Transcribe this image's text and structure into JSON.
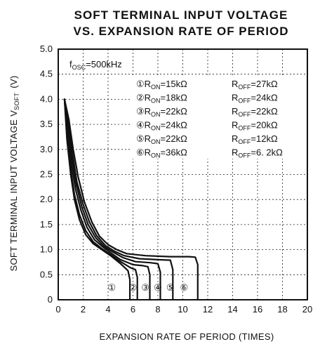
{
  "chart_data": {
    "type": "line",
    "title_lines": [
      "SOFT TERMINAL INPUT VOLTAGE",
      "VS. EXPANSION RATE OF PERIOD"
    ],
    "ylabel_main": "SOFT TERMINAL INPUT VOLTAGE V",
    "ylabel_sub": "SOFT",
    "ylabel_unit": "(V)",
    "xlabel": "EXPANSION RATE OF PERIOD (TIMES)",
    "xlim": [
      0,
      20
    ],
    "ylim": [
      0,
      5.0
    ],
    "x_ticks": [
      "0",
      "2",
      "4",
      "6",
      "8",
      "10",
      "12",
      "14",
      "16",
      "18",
      "20"
    ],
    "y_ticks": [
      "0",
      "0.5",
      "1.0",
      "1.5",
      "2.0",
      "2.5",
      "3.0",
      "3.5",
      "4.0",
      "4.5",
      "5.0"
    ],
    "grid": true,
    "condition": {
      "main": "f",
      "sub": "OSC",
      "rest": "=500kHz"
    },
    "legend": [
      {
        "num": "①",
        "ron": "=15kΩ",
        "roff": "=27kΩ"
      },
      {
        "num": "②",
        "ron": "=18kΩ",
        "roff": "=24kΩ"
      },
      {
        "num": "③",
        "ron": "=22kΩ",
        "roff": "=22kΩ"
      },
      {
        "num": "④",
        "ron": "=24kΩ",
        "roff": "=20kΩ"
      },
      {
        "num": "⑤",
        "ron": "=22kΩ",
        "roff": "=12kΩ"
      },
      {
        "num": "⑥",
        "ron": "=36kΩ",
        "roff": "=6. 2kΩ"
      }
    ],
    "ron_label": {
      "main": "R",
      "sub": "ON"
    },
    "roff_label": {
      "main": "R",
      "sub": "OFF"
    },
    "series": [
      {
        "num": "①",
        "x": [
          0.5,
          0.7,
          1.0,
          1.3,
          1.7,
          2.2,
          2.8,
          3.5,
          4.2,
          5.0,
          5.6,
          5.75,
          5.75
        ],
        "y": [
          4.0,
          3.2,
          2.5,
          2.0,
          1.6,
          1.3,
          1.12,
          1.0,
          0.88,
          0.72,
          0.58,
          0.4,
          0.0
        ]
      },
      {
        "num": "②",
        "x": [
          0.5,
          0.7,
          1.0,
          1.3,
          1.7,
          2.2,
          2.8,
          3.5,
          4.2,
          5.0,
          5.8,
          6.2,
          6.35,
          6.35
        ],
        "y": [
          4.0,
          3.3,
          2.6,
          2.1,
          1.7,
          1.38,
          1.16,
          1.02,
          0.9,
          0.76,
          0.64,
          0.6,
          0.45,
          0.0
        ]
      },
      {
        "num": "③",
        "x": [
          0.5,
          0.75,
          1.05,
          1.4,
          1.8,
          2.3,
          2.9,
          3.6,
          4.3,
          5.0,
          6.0,
          6.8,
          7.2,
          7.35,
          7.35
        ],
        "y": [
          4.0,
          3.4,
          2.7,
          2.2,
          1.8,
          1.45,
          1.2,
          1.05,
          0.92,
          0.8,
          0.7,
          0.68,
          0.66,
          0.5,
          0.0
        ]
      },
      {
        "num": "④",
        "x": [
          0.5,
          0.8,
          1.1,
          1.45,
          1.9,
          2.4,
          3.0,
          3.7,
          4.4,
          5.2,
          6.2,
          7.4,
          8.0,
          8.2,
          8.2
        ],
        "y": [
          4.0,
          3.5,
          2.8,
          2.3,
          1.85,
          1.5,
          1.24,
          1.06,
          0.95,
          0.84,
          0.76,
          0.74,
          0.72,
          0.55,
          0.0
        ]
      },
      {
        "num": "⑤",
        "x": [
          0.5,
          0.8,
          1.15,
          1.5,
          2.0,
          2.5,
          3.1,
          3.8,
          4.5,
          5.3,
          6.5,
          8.0,
          9.0,
          9.2,
          9.2
        ],
        "y": [
          4.0,
          3.55,
          2.9,
          2.35,
          1.9,
          1.55,
          1.27,
          1.08,
          0.97,
          0.88,
          0.82,
          0.8,
          0.79,
          0.6,
          0.0
        ]
      },
      {
        "num": "⑥",
        "x": [
          0.5,
          0.85,
          1.2,
          1.6,
          2.1,
          2.7,
          3.3,
          4.0,
          4.7,
          5.5,
          7.0,
          9.0,
          10.5,
          11.0,
          11.2,
          11.2
        ],
        "y": [
          4.0,
          3.6,
          3.0,
          2.45,
          1.95,
          1.55,
          1.27,
          1.1,
          1.0,
          0.92,
          0.88,
          0.86,
          0.86,
          0.85,
          0.7,
          0.0
        ]
      }
    ],
    "end_labels": [
      {
        "num": "①",
        "x": 4.3
      },
      {
        "num": "②",
        "x": 6.0
      },
      {
        "num": "③",
        "x": 7.0
      },
      {
        "num": "④",
        "x": 8.0
      },
      {
        "num": "⑤",
        "x": 9.0
      },
      {
        "num": "⑥",
        "x": 10.1
      }
    ]
  }
}
